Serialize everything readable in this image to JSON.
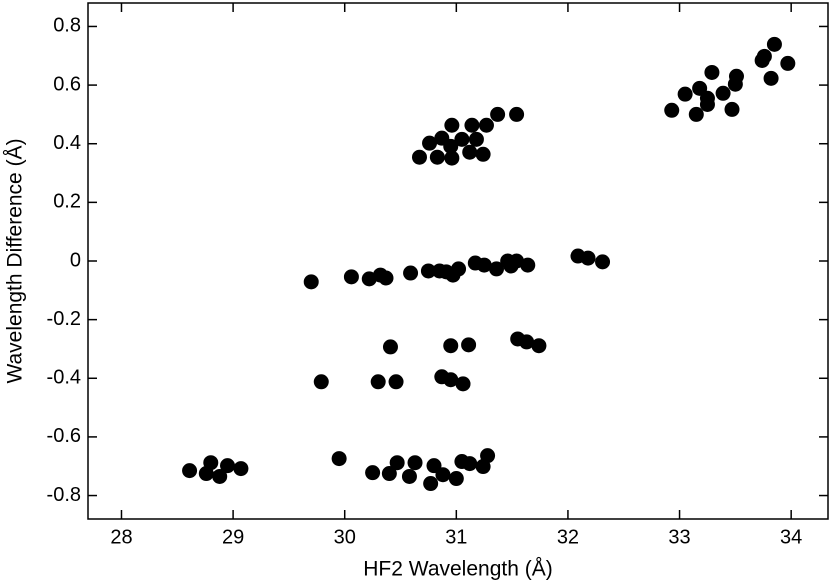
{
  "chart_data": {
    "type": "scatter",
    "x_label": "HF2 Wavelength (Å)",
    "y_label": "Wavelength Difference (Å)",
    "xlim": [
      27.7,
      34.33
    ],
    "ylim": [
      -0.88,
      0.88
    ],
    "xticks": [
      28,
      29,
      30,
      31,
      32,
      33,
      34
    ],
    "yticks": [
      -0.8,
      -0.6,
      -0.4,
      -0.2,
      0,
      0.2,
      0.4,
      0.6,
      0.8
    ],
    "grid": false,
    "series": [
      {
        "color": "#000000",
        "x": [
          28.61,
          28.76,
          28.8,
          28.88,
          28.95,
          29.07,
          29.95,
          30.25,
          30.4,
          30.47,
          30.58,
          30.63,
          30.77,
          30.8,
          30.88,
          31.0,
          31.05,
          31.12,
          31.24,
          31.28,
          29.79,
          30.3,
          30.46,
          30.41,
          30.87,
          30.95,
          31.06,
          30.95,
          31.11,
          31.55,
          31.63,
          31.74,
          29.7,
          30.06,
          30.22,
          30.32,
          30.37,
          30.59,
          30.75,
          30.85,
          30.91,
          30.97,
          31.02,
          31.17,
          31.25,
          31.36,
          31.46,
          31.49,
          31.54,
          31.64,
          32.09,
          32.18,
          32.31,
          30.67,
          30.76,
          30.83,
          30.87,
          30.95,
          30.96,
          30.96,
          31.05,
          31.12,
          31.14,
          31.18,
          31.24,
          31.27,
          31.37,
          31.54,
          32.93,
          33.05,
          33.15,
          33.18,
          33.25,
          33.25,
          33.29,
          33.39,
          33.47,
          33.5,
          33.51,
          33.74,
          33.76,
          33.82,
          33.85,
          33.97
        ],
        "values": [
          -0.715,
          -0.725,
          -0.688,
          -0.735,
          -0.698,
          -0.708,
          -0.674,
          -0.722,
          -0.725,
          -0.688,
          -0.735,
          -0.688,
          -0.759,
          -0.698,
          -0.729,
          -0.742,
          -0.684,
          -0.691,
          -0.701,
          -0.664,
          -0.412,
          -0.412,
          -0.412,
          -0.293,
          -0.395,
          -0.405,
          -0.419,
          -0.289,
          -0.286,
          -0.266,
          -0.276,
          -0.289,
          -0.071,
          -0.054,
          -0.061,
          -0.048,
          -0.058,
          -0.041,
          -0.034,
          -0.034,
          -0.037,
          -0.048,
          -0.027,
          -0.007,
          -0.014,
          -0.027,
          0,
          -0.017,
          0,
          -0.014,
          0.017,
          0.01,
          -0.003,
          0.354,
          0.402,
          0.354,
          0.419,
          0.391,
          0.463,
          0.351,
          0.415,
          0.371,
          0.463,
          0.415,
          0.364,
          0.463,
          0.5,
          0.5,
          0.514,
          0.569,
          0.5,
          0.589,
          0.555,
          0.534,
          0.643,
          0.572,
          0.517,
          0.603,
          0.63,
          0.684,
          0.698,
          0.623,
          0.739,
          0.674
        ]
      }
    ]
  }
}
